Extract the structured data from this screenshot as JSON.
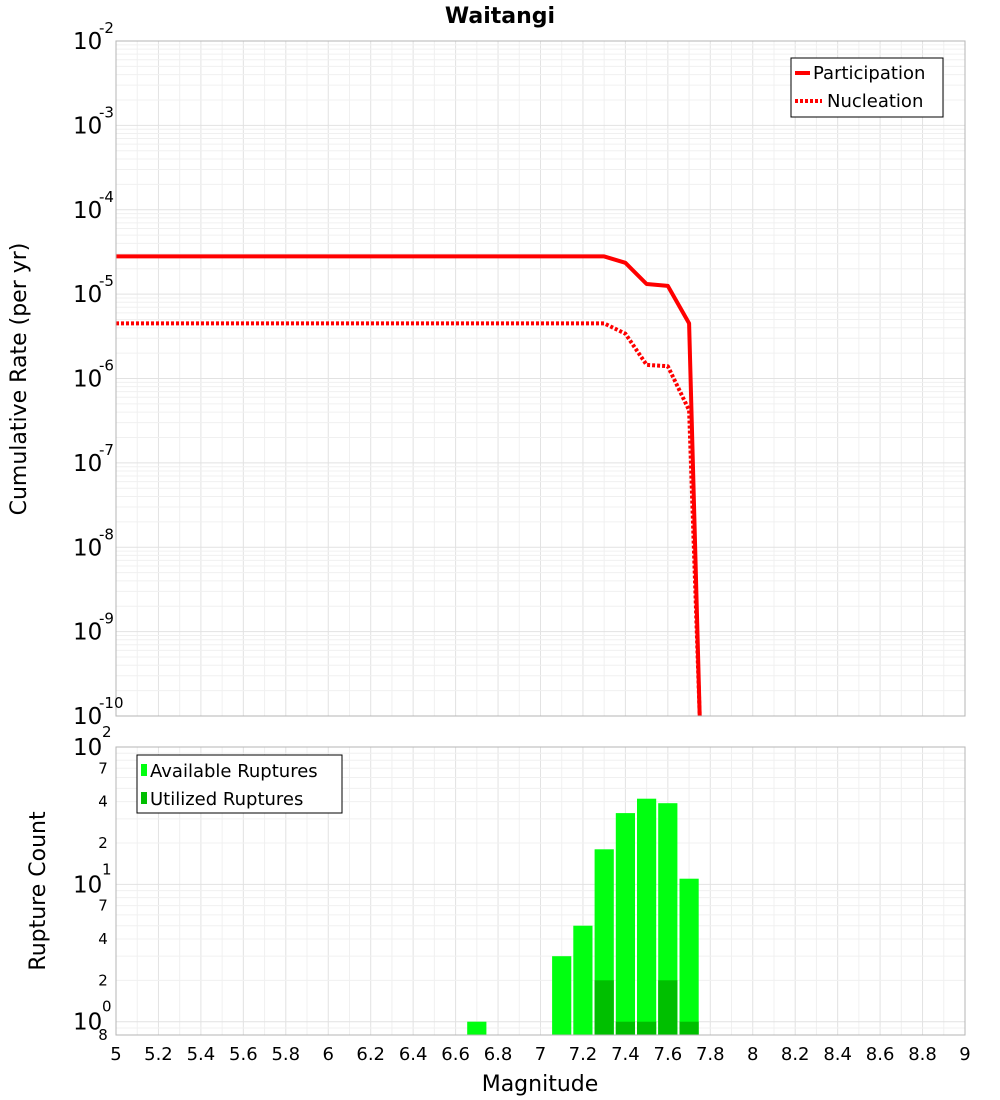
{
  "chart_data": [
    {
      "type": "line",
      "title": "Waitangi",
      "xlabel": "Magnitude",
      "ylabel": "Cumulative Rate (per yr)",
      "yscale": "log",
      "xlim": [
        5,
        9
      ],
      "ylim": [
        1e-10,
        0.01
      ],
      "y_ticks": [
        {
          "base": "10",
          "exp": "-2",
          "value": 0.01
        },
        {
          "base": "10",
          "exp": "-3",
          "value": 0.001
        },
        {
          "base": "10",
          "exp": "-4",
          "value": 0.0001
        },
        {
          "base": "10",
          "exp": "-5",
          "value": 1e-05
        },
        {
          "base": "10",
          "exp": "-6",
          "value": 1e-06
        },
        {
          "base": "10",
          "exp": "-7",
          "value": 1e-07
        },
        {
          "base": "10",
          "exp": "-8",
          "value": 1e-08
        },
        {
          "base": "10",
          "exp": "-9",
          "value": 1e-09
        },
        {
          "base": "10",
          "exp": "-10",
          "value": 1e-10
        }
      ],
      "series": [
        {
          "name": "Participation",
          "style": "solid",
          "color": "#ff0000",
          "x": [
            5.0,
            7.3,
            7.4,
            7.5,
            7.6,
            7.7,
            7.75
          ],
          "y": [
            2.8e-05,
            2.8e-05,
            2.35e-05,
            1.32e-05,
            1.25e-05,
            4.5e-06,
            1e-10
          ]
        },
        {
          "name": "Nucleation",
          "style": "dotted",
          "color": "#ff0000",
          "x": [
            5.0,
            7.3,
            7.4,
            7.5,
            7.6,
            7.7,
            7.75
          ],
          "y": [
            4.5e-06,
            4.5e-06,
            3.4e-06,
            1.45e-06,
            1.4e-06,
            4.2e-07,
            1e-10
          ]
        }
      ],
      "legend": {
        "position": "top-right",
        "entries": [
          "Participation",
          "Nucleation"
        ]
      }
    },
    {
      "type": "bar",
      "xlabel": "Magnitude",
      "ylabel": "Rupture Count",
      "yscale": "log",
      "xlim": [
        5,
        9
      ],
      "ylim": [
        0.8,
        100
      ],
      "x_ticks": [
        "5",
        "5.2",
        "5.4",
        "5.6",
        "5.8",
        "6",
        "6.2",
        "6.4",
        "6.6",
        "6.8",
        "7",
        "7.2",
        "7.4",
        "7.6",
        "7.8",
        "8",
        "8.2",
        "8.4",
        "8.6",
        "8.8",
        "9"
      ],
      "y_major_ticks": [
        {
          "base": "10",
          "exp": "2",
          "value": 100
        },
        {
          "base": "10",
          "exp": "1",
          "value": 10
        },
        {
          "base": "10",
          "exp": "0",
          "value": 1
        }
      ],
      "y_minor_ticks": [
        {
          "label": "7",
          "value": 70
        },
        {
          "label": "4",
          "value": 40
        },
        {
          "label": "2",
          "value": 20
        },
        {
          "label": "7",
          "value": 7
        },
        {
          "label": "4",
          "value": 4
        },
        {
          "label": "2",
          "value": 2
        },
        {
          "label": "8",
          "value": 0.8
        }
      ],
      "bin_width": 0.1,
      "series": [
        {
          "name": "Available Ruptures",
          "color": "#00ff10",
          "x": [
            6.7,
            7.1,
            7.2,
            7.3,
            7.4,
            7.5,
            7.6,
            7.7
          ],
          "values": [
            1,
            3,
            5,
            18,
            33,
            42,
            39,
            11
          ]
        },
        {
          "name": "Utilized Ruptures",
          "color": "#00bf00",
          "x": [
            7.3,
            7.4,
            7.5,
            7.6,
            7.7
          ],
          "values": [
            2,
            1,
            1,
            2,
            1
          ]
        }
      ],
      "legend": {
        "position": "top-left",
        "entries": [
          "Available Ruptures",
          "Utilized Ruptures"
        ]
      }
    }
  ]
}
